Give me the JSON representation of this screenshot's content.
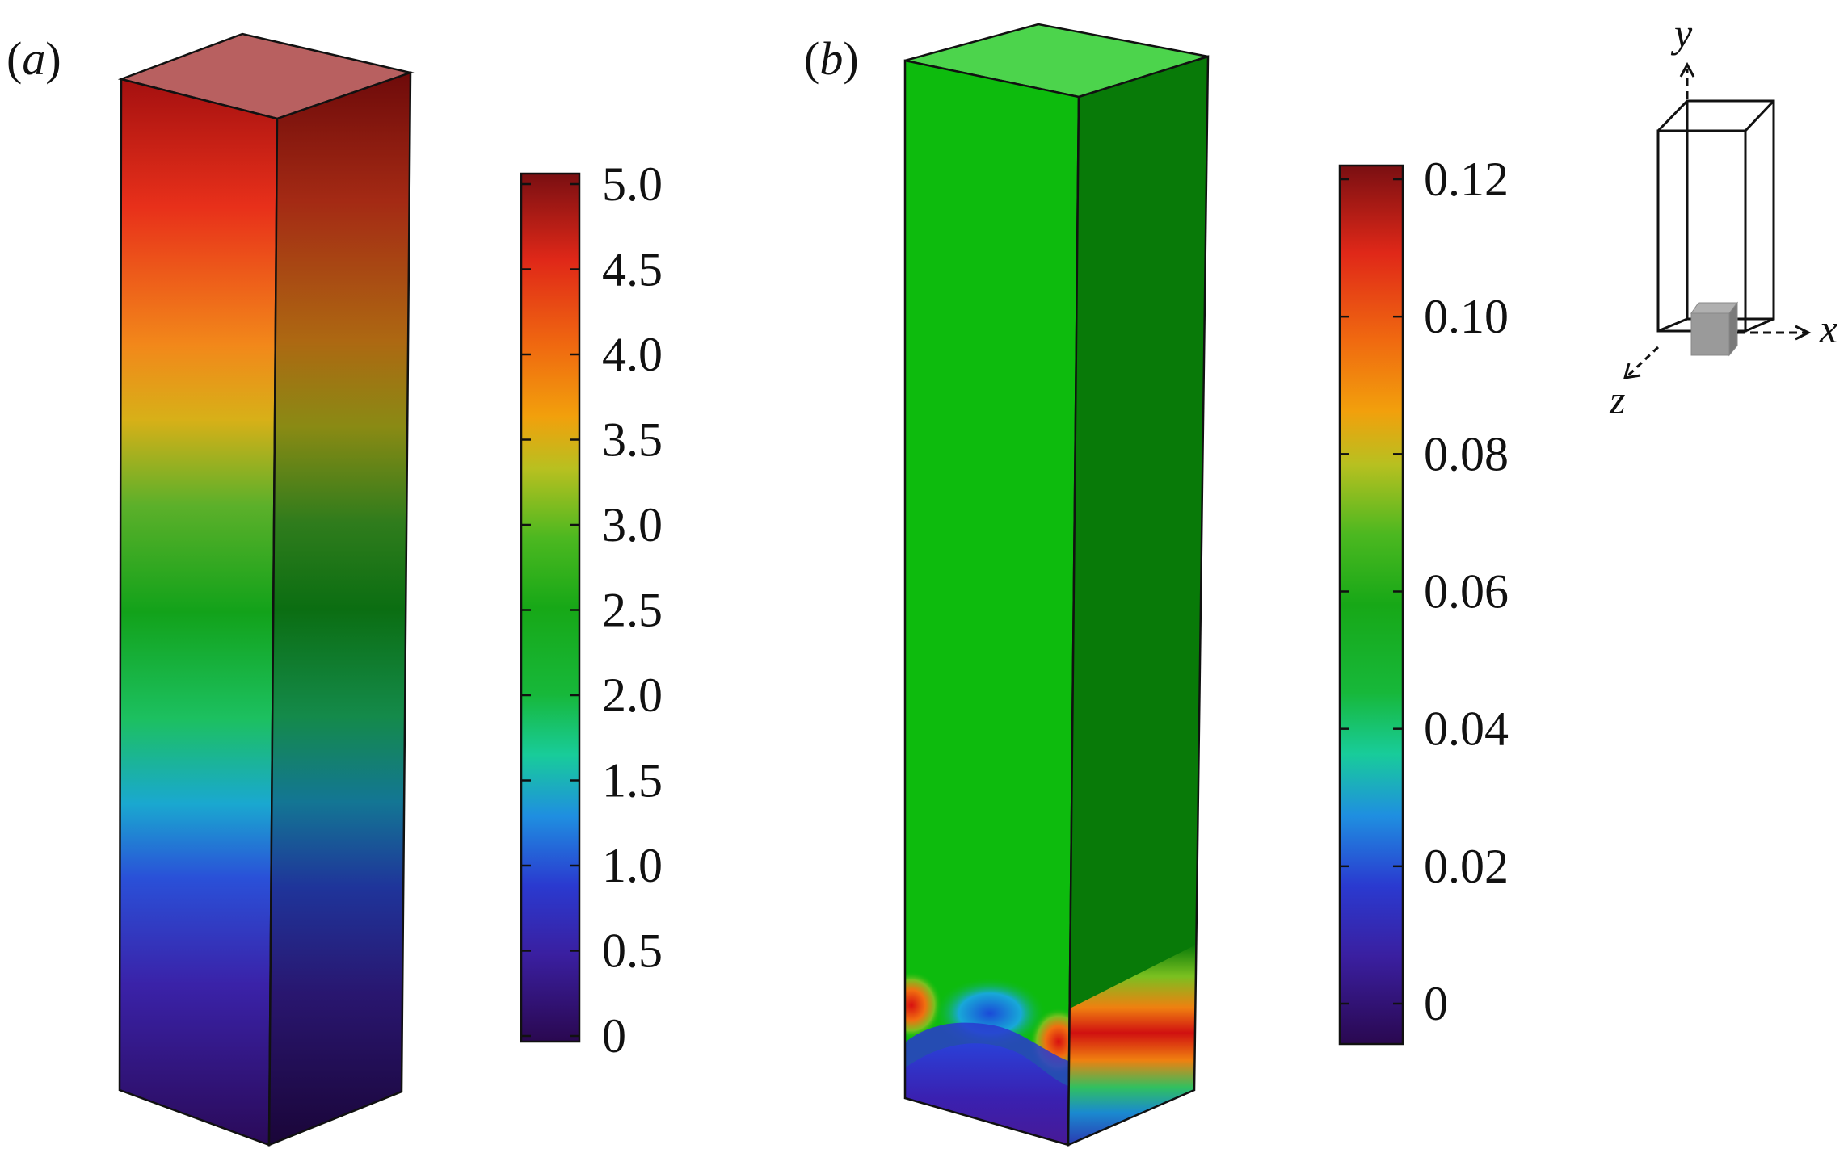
{
  "panels": [
    {
      "label_open": "(",
      "label_letter": "a",
      "label_close": ")",
      "colorbar_ticks": [
        "5.0",
        "4.5",
        "4.0",
        "3.5",
        "3.0",
        "2.5",
        "2.0",
        "1.5",
        "1.0",
        "0.5",
        "0"
      ]
    },
    {
      "label_open": "(",
      "label_letter": "b",
      "label_close": ")",
      "colorbar_ticks": [
        "0.12",
        "0.10",
        "0.08",
        "0.06",
        "0.04",
        "0.02",
        "0"
      ]
    }
  ],
  "axes": {
    "x": "x",
    "y": "y",
    "z": "z"
  },
  "colors": {
    "outline": "#111111",
    "top_face_a": "#b86060",
    "top_face_b": "#4cd44c",
    "front_b": "#0dbb0d",
    "side_b": "#087a08",
    "insert_block": "#9a9a9a"
  }
}
